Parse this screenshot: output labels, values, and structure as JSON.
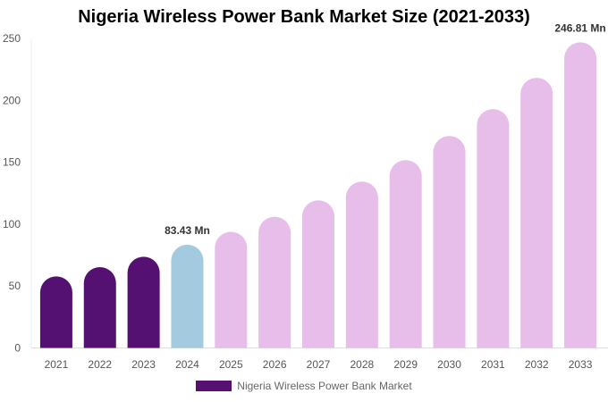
{
  "chart_data": {
    "type": "bar",
    "title": "Nigeria Wireless Power Bank Market Size (2021-2033)",
    "categories": [
      "2021",
      "2022",
      "2023",
      "2024",
      "2025",
      "2026",
      "2027",
      "2028",
      "2029",
      "2030",
      "2031",
      "2032",
      "2033"
    ],
    "series": [
      {
        "name": "Nigeria Wireless Power Bank Market",
        "values": [
          57.8,
          65.3,
          73.7,
          83.43,
          93.8,
          106.0,
          119.2,
          134.4,
          151.7,
          171.2,
          192.9,
          218.2,
          246.81
        ]
      }
    ],
    "ylim": [
      0,
      250
    ],
    "yticks": [
      0,
      50,
      100,
      150,
      200,
      250
    ],
    "data_labels": [
      {
        "category": "2024",
        "text": "83.43 Mn"
      },
      {
        "category": "2033",
        "text": "246.81 Mn"
      }
    ],
    "colors": {
      "historical": "#541171",
      "base_year": "#a3cade",
      "forecast": "#e7bde9"
    },
    "historical_years": [
      "2021",
      "2022",
      "2023"
    ],
    "base_year": "2024",
    "grid": false,
    "legend": "bottom"
  }
}
